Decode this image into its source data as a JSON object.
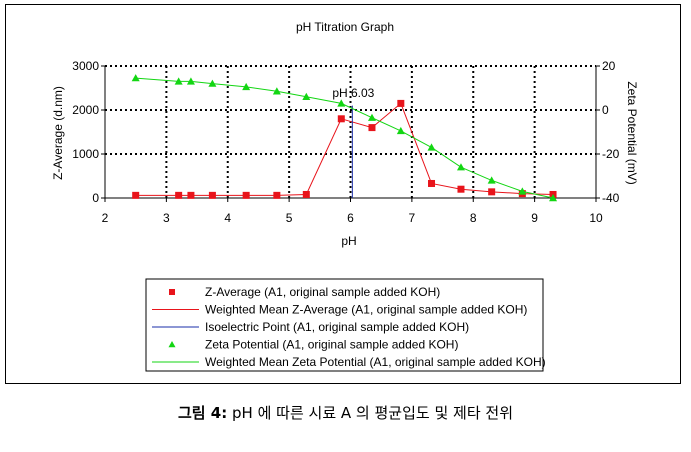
{
  "chart_data": {
    "type": "scatter",
    "title": "pH Titration Graph",
    "xlabel": "pH",
    "ylabel": "Z-Average (d.nm)",
    "y2label": "Zeta Potential (mV)",
    "xlim": [
      2,
      10
    ],
    "ylim": [
      0,
      3000
    ],
    "y2lim": [
      -40,
      20
    ],
    "x_ticks": [
      "2",
      "3",
      "4",
      "5",
      "6",
      "7",
      "8",
      "9",
      "10"
    ],
    "y_ticks": [
      "0",
      "1000",
      "2000",
      "3000"
    ],
    "y2_ticks": [
      "-40",
      "-20",
      "0",
      "20"
    ],
    "grid": true,
    "legend_position": "below",
    "annotation": "pH 6.03",
    "isoelectric_point": 6.03,
    "series": [
      {
        "name": "Z-Average (A1, original sample added KOH)",
        "axis": "left",
        "marker": "square",
        "color": "#e8141b",
        "x": [
          2.5,
          3.2,
          3.4,
          3.75,
          4.3,
          4.8,
          5.28,
          5.85,
          6.35,
          6.82,
          7.32,
          7.8,
          8.3,
          8.8,
          9.3
        ],
        "y": [
          60,
          60,
          60,
          60,
          60,
          60,
          80,
          1800,
          1600,
          2150,
          330,
          200,
          140,
          100,
          80
        ]
      },
      {
        "name": "Weighted Mean Z-Average (A1, original sample added KOH)",
        "axis": "left",
        "marker": "line",
        "color": "#e8141b",
        "x": [
          2.5,
          3.2,
          3.4,
          3.75,
          4.3,
          4.8,
          5.28,
          5.85,
          6.35,
          6.82,
          7.32,
          7.8,
          8.3,
          8.8,
          9.3
        ],
        "y": [
          60,
          60,
          60,
          60,
          60,
          60,
          80,
          1800,
          1600,
          2150,
          330,
          200,
          140,
          100,
          80
        ]
      },
      {
        "name": "Isoelectric Point (A1, original sample added KOH)",
        "axis": "left",
        "marker": "vline",
        "color": "#1a2ea8",
        "x": [
          6.03,
          6.03
        ],
        "y": [
          0,
          2100
        ]
      },
      {
        "name": "Zeta Potential (A1, original sample added KOH)",
        "axis": "right",
        "marker": "triangle",
        "color": "#13d613",
        "x": [
          2.5,
          3.2,
          3.4,
          3.75,
          4.3,
          4.8,
          5.28,
          5.85,
          6.35,
          6.82,
          7.32,
          7.8,
          8.3,
          8.8,
          9.3
        ],
        "y": [
          14.5,
          13,
          13,
          12,
          10.5,
          8.5,
          6,
          3,
          -3.5,
          -9.5,
          -17,
          -26,
          -32,
          -37,
          -40
        ]
      },
      {
        "name": "Weighted Mean Zeta Potential (A1, original sample added KOH)",
        "axis": "right",
        "marker": "line",
        "color": "#13d613",
        "x": [
          2.5,
          3.2,
          3.4,
          3.75,
          4.3,
          4.8,
          5.28,
          5.85,
          6.35,
          6.82,
          7.32,
          7.8,
          8.3,
          8.8,
          9.3
        ],
        "y": [
          14.5,
          13,
          13,
          12,
          10.5,
          8.5,
          6,
          3,
          -3.5,
          -9.5,
          -17,
          -26,
          -32,
          -37,
          -40
        ]
      }
    ]
  },
  "caption": {
    "label": "그림 4:",
    "text": "pH 에 따른 시료 A 의 평균입도 및 제타 전위"
  }
}
